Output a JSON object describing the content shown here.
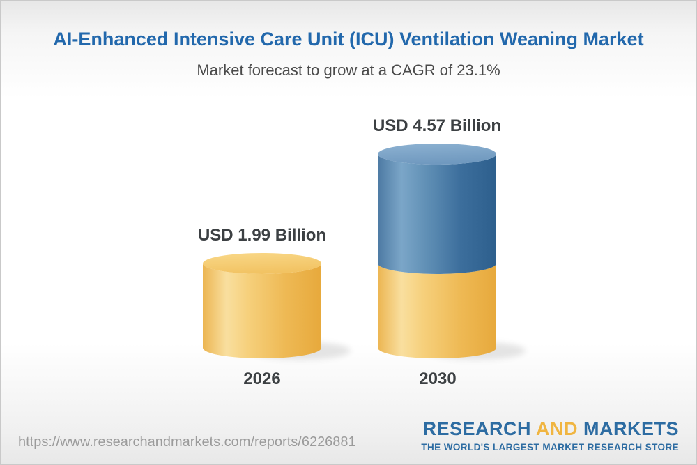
{
  "header": {
    "title": "AI-Enhanced Intensive Care Unit (ICU) Ventilation Weaning Market",
    "subtitle": "Market forecast to grow at a CAGR of 23.1%"
  },
  "chart_data": {
    "type": "bar",
    "subtype": "3d-cylinder",
    "title": "AI-Enhanced Intensive Care Unit (ICU) Ventilation Weaning Market",
    "subtitle": "Market forecast to grow at a CAGR of 23.1%",
    "cagr_percent": 23.1,
    "unit": "USD Billion",
    "categories": [
      "2026",
      "2030"
    ],
    "values": [
      1.99,
      4.57
    ],
    "value_labels": [
      "USD 1.99 Billion",
      "USD 4.57 Billion"
    ],
    "ylim": [
      0,
      4.57
    ],
    "grid": false,
    "legend": "none",
    "stacking_note": "2030 cylinder shows base segment (gold, equal to 2026 value) plus growth segment (blue) on top",
    "colors": {
      "gold": "#f0bc55",
      "blue": "#41719f",
      "label_text": "#3c4043",
      "title_blue": "#2268ac",
      "gold_body": [
        "#ecb551",
        "#f9df9f",
        "#f6d07c",
        "#eeb954",
        "#e7a93c"
      ],
      "gold_top": [
        "#f9d888",
        "#f2c363"
      ],
      "blue_body": [
        "#4d7aa3",
        "#7ba6c8",
        "#6493b8",
        "#3c6e9c",
        "#2d5f8d"
      ],
      "blue_top": [
        "#8db2d2",
        "#7099bf"
      ]
    }
  },
  "footer": {
    "url": "https://www.researchandmarkets.com/reports/6226881",
    "logo": {
      "part1": "RESEARCH",
      "part2": "AND",
      "part3": "MARKETS",
      "tagline": "THE WORLD'S LARGEST MARKET RESEARCH STORE"
    }
  }
}
